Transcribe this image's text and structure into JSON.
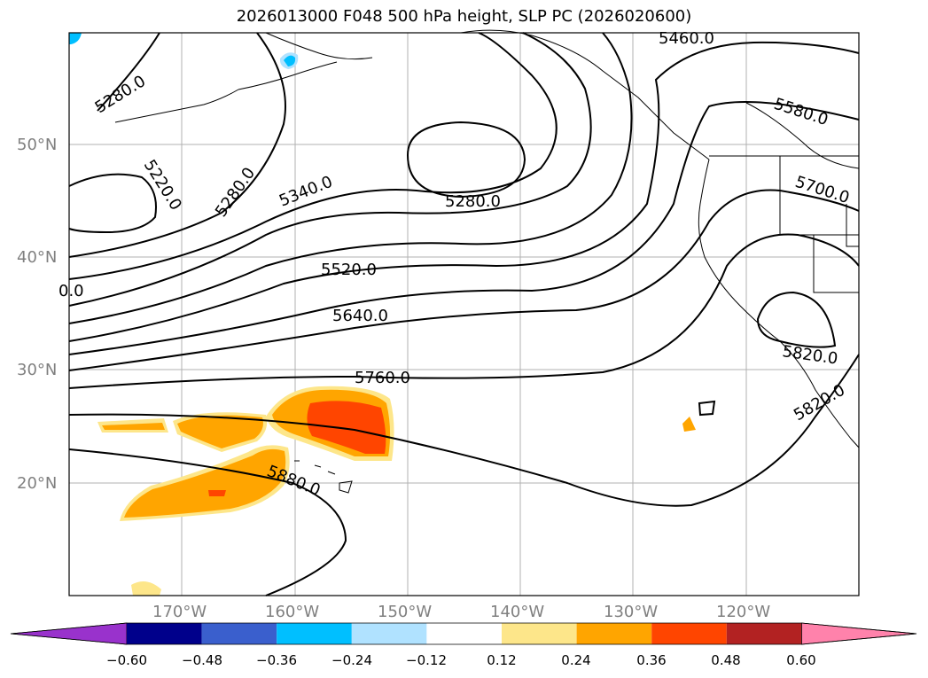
{
  "title": "2026013000 F048 500 hPa height, SLP PC (2026020600)",
  "map": {
    "lat_labels": [
      "50°N",
      "40°N",
      "30°N",
      "20°N"
    ],
    "lon_labels": [
      "170°W",
      "160°W",
      "150°W",
      "140°W",
      "130°W",
      "120°W"
    ],
    "contour_labels": [
      "5280.0",
      "5220.0",
      "5280.0",
      "5340.0",
      "5280.0",
      "5460.0",
      "5580.0",
      "5700.0",
      "0.0",
      "5520.0",
      "5640.0",
      "5760.0",
      "5820.0",
      "5820.0",
      "5880.0"
    ]
  },
  "colorbar": {
    "colors": [
      "#9932cc",
      "#00008b",
      "#3a5fcd",
      "#00bfff",
      "#b0e2ff",
      "#ffffff",
      "#fde68a",
      "#ffa500",
      "#ff4500",
      "#b22222",
      "#ff82ab"
    ],
    "labels": [
      "−0.60",
      "−0.48",
      "−0.36",
      "−0.24",
      "−0.12",
      "0.12",
      "0.24",
      "0.36",
      "0.48",
      "0.60"
    ]
  }
}
